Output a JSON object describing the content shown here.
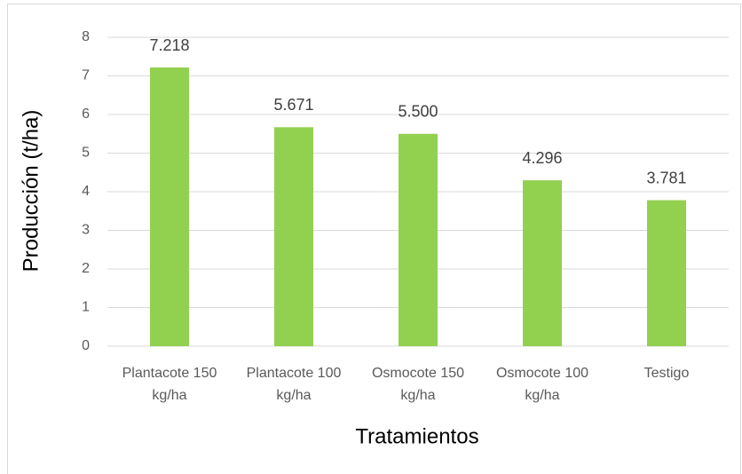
{
  "chart_data": {
    "type": "bar",
    "categories": [
      "Plantacote 150 kg/ha",
      "Plantacote 100 kg/ha",
      "Osmocote 150 kg/ha",
      "Osmocote 100 kg/ha",
      "Testigo"
    ],
    "values": [
      7.218,
      5.671,
      5.5,
      4.296,
      3.781
    ],
    "value_labels": [
      "7.218",
      "5.671",
      "5.500",
      "4.296",
      "3.781"
    ],
    "color": "#92d050",
    "ylim": [
      0,
      8
    ],
    "yticks": [
      0,
      1,
      2,
      3,
      4,
      5,
      6,
      7,
      8
    ],
    "grid": true,
    "y_label": "Producción (t/ha)",
    "x_label": "Tratamientos"
  }
}
